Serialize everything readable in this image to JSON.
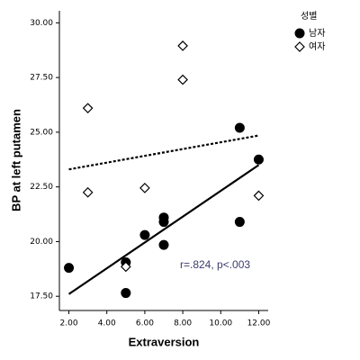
{
  "chart_data": {
    "type": "scatter",
    "x_label": "Extraversion",
    "y_label": "BP at left putamen",
    "xlim": [
      1.5,
      12.5
    ],
    "xticks": [
      {
        "value": 2,
        "label": "2.00"
      },
      {
        "value": 4,
        "label": "4.00"
      },
      {
        "value": 6,
        "label": "6.00"
      },
      {
        "value": 8,
        "label": "8.00"
      },
      {
        "value": 10,
        "label": "10.00"
      },
      {
        "value": 12,
        "label": "12.00"
      }
    ],
    "ylim": [
      16.85,
      30.55
    ],
    "yticks": [
      {
        "value": 17.5,
        "label": "17.50"
      },
      {
        "value": 20,
        "label": "20.00"
      },
      {
        "value": 22.5,
        "label": "22.50"
      },
      {
        "value": 25,
        "label": "25.00"
      },
      {
        "value": 27.5,
        "label": "27.50"
      },
      {
        "value": 30,
        "label": "30.00"
      }
    ],
    "grid": false,
    "legend_title": "성별",
    "legend_position": "top-right",
    "annotation": "r=.824, p<.003",
    "series": [
      {
        "name": "남자",
        "marker": "circle",
        "color": "#000000",
        "x": [
          2,
          5,
          5,
          6,
          7,
          7,
          7,
          11,
          11,
          12
        ],
        "values": [
          18.8,
          19.05,
          17.65,
          20.3,
          19.85,
          20.9,
          21.1,
          25.2,
          20.9,
          23.75
        ],
        "fit": {
          "line_style": "solid",
          "x": [
            2,
            12
          ],
          "values": [
            17.6,
            23.5
          ]
        }
      },
      {
        "name": "여자",
        "marker": "diamond",
        "color": "#000000",
        "x": [
          3,
          3,
          5,
          6,
          8,
          8,
          12
        ],
        "values": [
          26.1,
          22.25,
          18.85,
          22.45,
          28.95,
          27.4,
          22.1
        ],
        "fit": {
          "line_style": "dotted",
          "x": [
            2,
            12
          ],
          "values": [
            23.3,
            24.85
          ]
        }
      }
    ]
  }
}
